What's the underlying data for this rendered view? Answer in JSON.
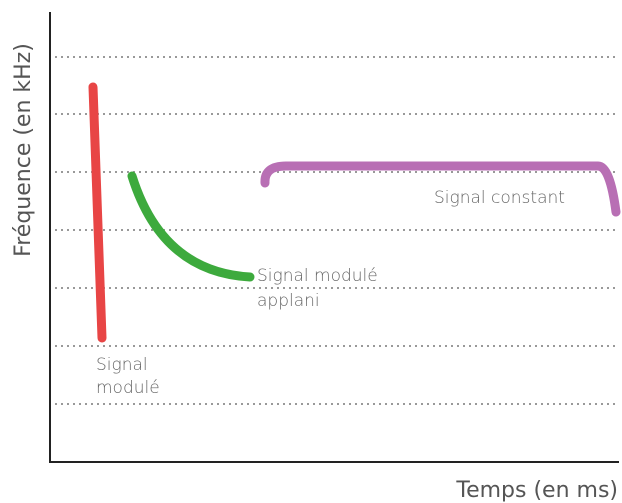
{
  "y_axis_label": "Fréquence (en kHz)",
  "x_axis_label": "Temps (en ms)",
  "curves": [
    {
      "label_lines": [
        "Signal",
        "modulé"
      ]
    },
    {
      "label_lines": [
        "Signal modulé",
        "applani"
      ]
    },
    {
      "label_lines": [
        "Signal constant"
      ]
    }
  ]
}
